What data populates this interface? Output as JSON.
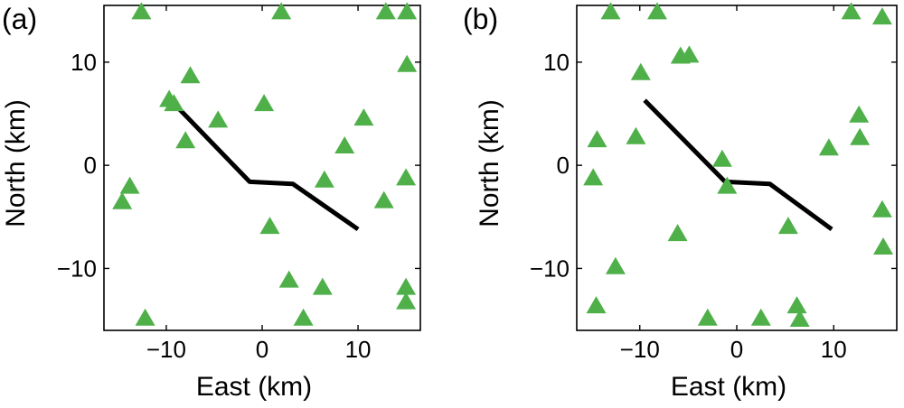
{
  "chart_data": [
    {
      "type": "scatter",
      "panel_label": "(a)",
      "xlabel": "East (km)",
      "ylabel": "North (km)",
      "xlim": [
        -16.5,
        16.5
      ],
      "ylim": [
        -16,
        15.5
      ],
      "x_ticks": [
        -10,
        0,
        10
      ],
      "y_ticks": [
        -10,
        0,
        10
      ],
      "x_tick_labels": [
        "−10",
        "0",
        "10"
      ],
      "y_tick_labels": [
        "−10",
        "0",
        "10"
      ],
      "grid": false,
      "series": [
        {
          "marker": "triangle",
          "color": "#4fb04a",
          "points": [
            [
              -12.6,
              14.9
            ],
            [
              2.0,
              14.9
            ],
            [
              12.9,
              14.9
            ],
            [
              15.1,
              14.9
            ],
            [
              -7.5,
              8.7
            ],
            [
              15.1,
              9.8
            ],
            [
              -9.7,
              6.4
            ],
            [
              -9.2,
              6.0
            ],
            [
              0.2,
              6.0
            ],
            [
              -4.6,
              4.4
            ],
            [
              10.6,
              4.6
            ],
            [
              -8.0,
              2.4
            ],
            [
              8.6,
              1.9
            ],
            [
              6.5,
              -1.4
            ],
            [
              15.0,
              -1.2
            ],
            [
              -14.6,
              -3.5
            ],
            [
              -13.8,
              -2.0
            ],
            [
              12.7,
              -3.4
            ],
            [
              0.8,
              -5.9
            ],
            [
              2.8,
              -11.1
            ],
            [
              6.3,
              -11.8
            ],
            [
              15.0,
              -11.8
            ],
            [
              15.0,
              -13.2
            ],
            [
              -12.2,
              -14.8
            ],
            [
              4.3,
              -14.8
            ]
          ]
        },
        {
          "type": "line",
          "color": "#000000",
          "points": [
            [
              -8.8,
              5.6
            ],
            [
              -1.3,
              -1.6
            ],
            [
              3.2,
              -1.8
            ],
            [
              10.0,
              -6.2
            ]
          ]
        }
      ]
    },
    {
      "type": "scatter",
      "panel_label": "(b)",
      "xlabel": "East (km)",
      "ylabel": "North (km)",
      "xlim": [
        -16.5,
        16.5
      ],
      "ylim": [
        -16,
        15.5
      ],
      "x_ticks": [
        -10,
        0,
        10
      ],
      "y_ticks": [
        -10,
        0,
        10
      ],
      "x_tick_labels": [
        "−10",
        "0",
        "10"
      ],
      "y_tick_labels": [
        "−10",
        "0",
        "10"
      ],
      "grid": false,
      "series": [
        {
          "marker": "triangle",
          "color": "#4fb04a",
          "points": [
            [
              -13.0,
              14.9
            ],
            [
              -8.2,
              14.9
            ],
            [
              11.8,
              14.9
            ],
            [
              15.0,
              14.4
            ],
            [
              -5.8,
              10.6
            ],
            [
              -4.9,
              10.7
            ],
            [
              -9.9,
              9.0
            ],
            [
              12.6,
              4.9
            ],
            [
              -10.4,
              2.8
            ],
            [
              -14.4,
              2.5
            ],
            [
              12.7,
              2.7
            ],
            [
              9.5,
              1.7
            ],
            [
              -1.5,
              0.6
            ],
            [
              -14.8,
              -1.2
            ],
            [
              -1.0,
              -2.0
            ],
            [
              15.0,
              -4.3
            ],
            [
              5.3,
              -5.9
            ],
            [
              -6.1,
              -6.6
            ],
            [
              15.1,
              -7.9
            ],
            [
              -12.5,
              -9.8
            ],
            [
              -14.5,
              -13.6
            ],
            [
              6.2,
              -13.6
            ],
            [
              -3.0,
              -14.8
            ],
            [
              2.5,
              -14.8
            ],
            [
              6.5,
              -14.9
            ]
          ]
        },
        {
          "type": "line",
          "color": "#000000",
          "points": [
            [
              -9.5,
              6.3
            ],
            [
              -1.2,
              -1.6
            ],
            [
              3.4,
              -1.8
            ],
            [
              9.8,
              -6.2
            ]
          ]
        }
      ]
    }
  ]
}
